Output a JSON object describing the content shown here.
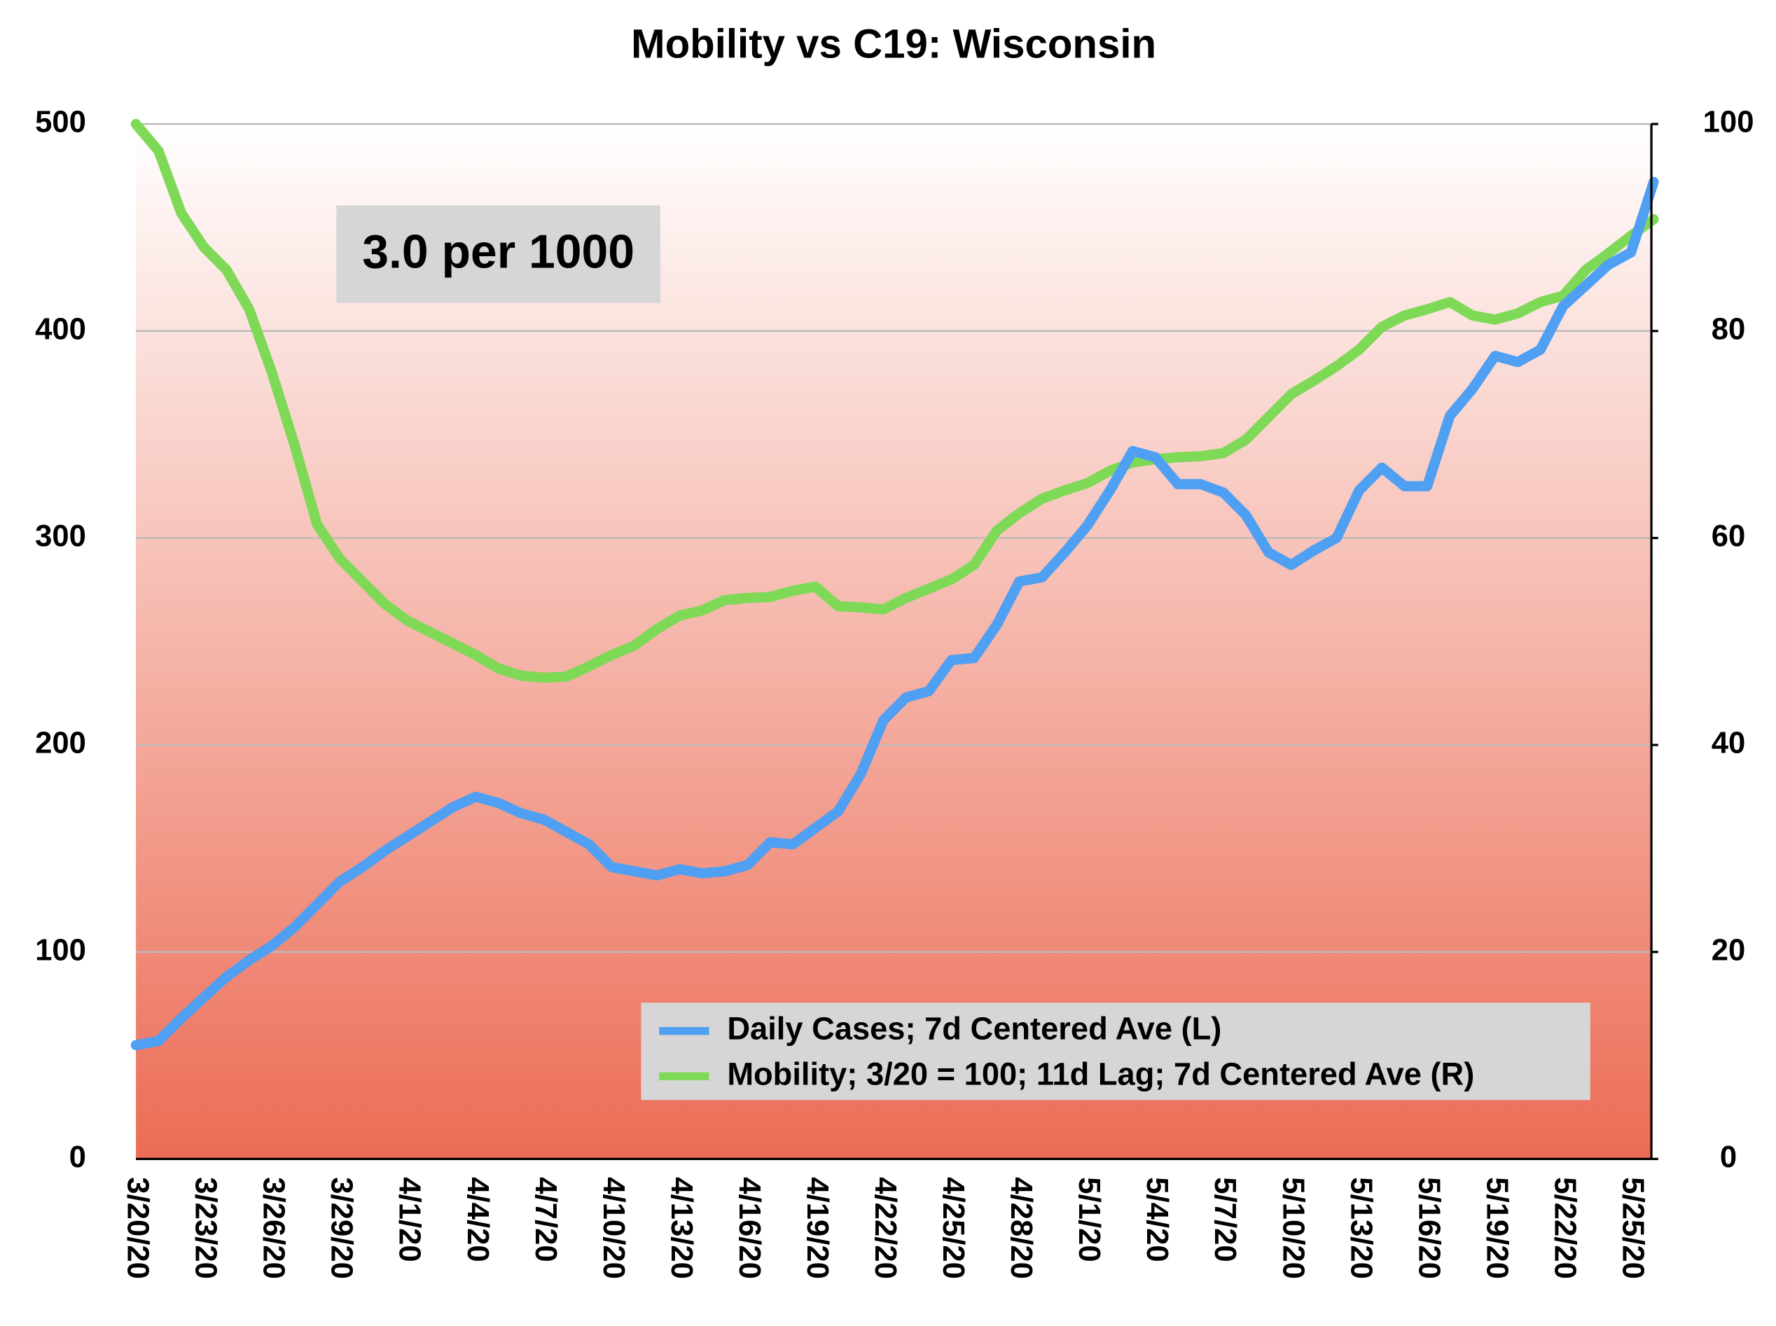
{
  "chart_data": {
    "type": "line",
    "title": "Mobility vs C19: Wisconsin",
    "annotation": "3.0 per 1000",
    "categories": [
      "3/20/20",
      null,
      null,
      "3/23/20",
      null,
      null,
      "3/26/20",
      null,
      null,
      "3/29/20",
      null,
      null,
      "4/1/20",
      null,
      null,
      "4/4/20",
      null,
      null,
      "4/7/20",
      null,
      null,
      "4/10/20",
      null,
      null,
      "4/13/20",
      null,
      null,
      "4/16/20",
      null,
      null,
      "4/19/20",
      null,
      null,
      "4/22/20",
      null,
      null,
      "4/25/20",
      null,
      null,
      "4/28/20",
      null,
      null,
      "5/1/20",
      null,
      null,
      "5/4/20",
      null,
      null,
      "5/7/20",
      null,
      null,
      "5/10/20",
      null,
      null,
      "5/13/20",
      null,
      null,
      "5/16/20",
      null,
      null,
      "5/19/20",
      null,
      null,
      "5/22/20",
      null,
      null,
      "5/25/20",
      null
    ],
    "series": [
      {
        "name": "Daily Cases; 7d Centered Ave (L)",
        "color": "#4f9ff3",
        "axis": "y",
        "values": [
          55,
          57,
          68,
          78,
          88,
          96,
          103,
          112,
          123,
          134,
          141,
          149,
          156,
          163,
          170,
          175,
          172,
          167,
          164,
          158,
          152,
          141,
          139,
          137,
          140,
          138,
          139,
          142,
          153,
          152,
          160,
          168,
          186,
          212,
          223,
          226,
          241,
          242,
          258,
          279,
          281,
          293,
          306,
          323,
          342,
          339,
          326,
          326,
          322,
          311,
          293,
          287,
          294,
          300,
          323,
          334,
          325,
          325,
          359,
          372,
          388,
          385,
          391,
          412,
          422,
          432,
          438,
          472
        ]
      },
      {
        "name": "Mobility; 3/20 = 100; 11d Lag; 7d Centered Ave (R)",
        "color": "#7ed957",
        "axis": "y2",
        "values": [
          100,
          97.4,
          91.4,
          88.1,
          85.9,
          82.1,
          76,
          69,
          61.3,
          58,
          55.8,
          53.6,
          52,
          50.9,
          49.8,
          48.7,
          47.4,
          46.7,
          46.5,
          46.6,
          47.6,
          48.7,
          49.6,
          51.2,
          52.5,
          53,
          54,
          54.2,
          54.3,
          54.9,
          55.3,
          53.4,
          53.3,
          53.1,
          54.2,
          55.1,
          56,
          57.4,
          60.7,
          62.4,
          63.8,
          64.6,
          65.3,
          66.5,
          67.3,
          67.6,
          67.8,
          67.9,
          68.2,
          69.5,
          71.7,
          73.9,
          75.2,
          76.6,
          78.2,
          80.4,
          81.5,
          82.1,
          82.8,
          81.5,
          81.1,
          81.7,
          82.8,
          83.4,
          85.9,
          87.5,
          89.2,
          90.8
        ]
      }
    ],
    "ylim": [
      0,
      500
    ],
    "yticks": [
      0,
      100,
      200,
      300,
      400,
      500
    ],
    "y2lim": [
      0,
      100
    ],
    "y2ticks": [
      0,
      20,
      40,
      60,
      80,
      100
    ],
    "grid": true,
    "legend": "lower right"
  }
}
